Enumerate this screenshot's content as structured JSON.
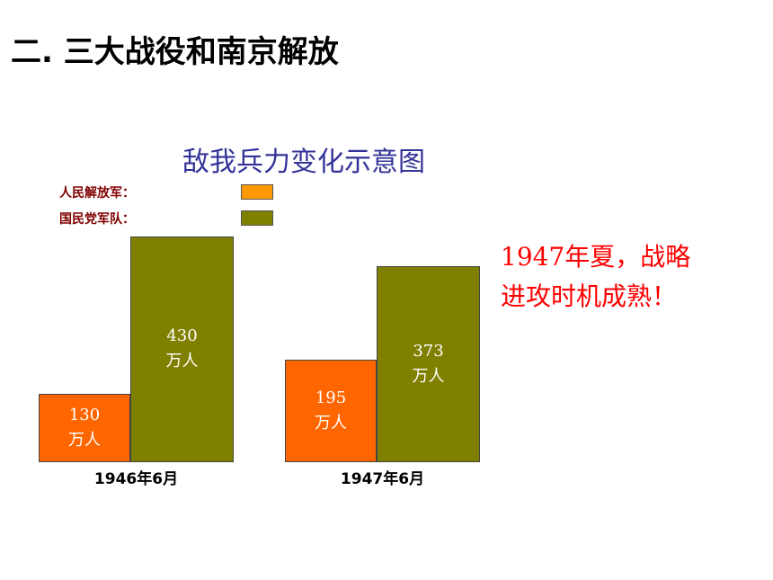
{
  "header": {
    "title": "二. 三大战役和南京解放"
  },
  "chart_data": {
    "type": "bar",
    "title": "敌我兵力变化示意图",
    "categories": [
      "1946年6月",
      "1947年6月"
    ],
    "series": [
      {
        "name": "人民解放军：",
        "color": "#ff6600",
        "legend_color": "#ff9900",
        "values": [
          130,
          195
        ],
        "value_labels": [
          "130\n万人",
          "195\n万人"
        ]
      },
      {
        "name": "国民党军队：",
        "color": "#808000",
        "values": [
          430,
          373
        ],
        "value_labels": [
          "430\n万人",
          "373\n万人"
        ]
      }
    ],
    "annotation": "1947年夏，战略进攻时机成熟！"
  }
}
